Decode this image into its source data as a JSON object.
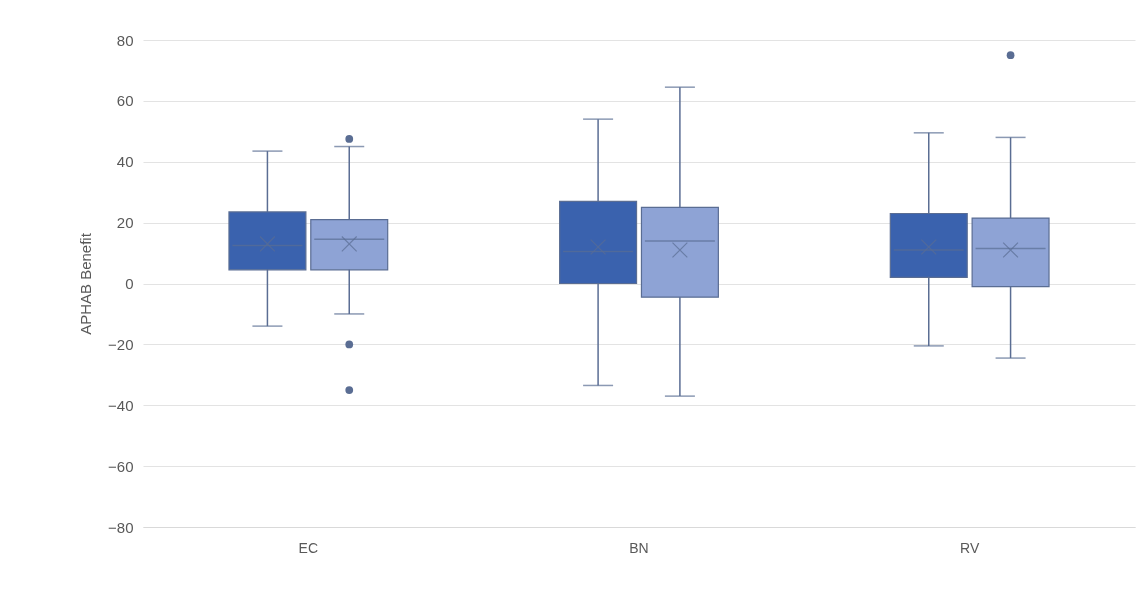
{
  "chart_data": {
    "type": "box",
    "ylabel": "APHAB Benefit",
    "categories": [
      "EC",
      "BN",
      "RV"
    ],
    "series": [
      {
        "color": "#3a62ae",
        "boxes": [
          {
            "low": -14,
            "q1": 4.5,
            "median": 12.5,
            "q3": 23.5,
            "high": 43.5,
            "mean": 13
          },
          {
            "low": -33.5,
            "q1": 0,
            "median": 10.5,
            "q3": 27,
            "high": 54,
            "mean": 12
          },
          {
            "low": -20.5,
            "q1": 2,
            "median": 11,
            "q3": 23,
            "high": 49.5,
            "mean": 12
          }
        ]
      },
      {
        "color": "#8ea3d5",
        "boxes": [
          {
            "low": -10,
            "q1": 4.5,
            "median": 14.5,
            "q3": 21,
            "high": 45,
            "mean": 13,
            "outliers": [
              47.5,
              -20,
              -35
            ]
          },
          {
            "low": -37,
            "q1": -4.5,
            "median": 14,
            "q3": 25,
            "high": 64.5,
            "mean": 11
          },
          {
            "low": -24.5,
            "q1": -1,
            "median": 11.5,
            "q3": 21.5,
            "high": 48,
            "mean": 11,
            "outliers": [
              75
            ]
          }
        ]
      }
    ],
    "ylim": [
      -80,
      80
    ],
    "yticks": [
      -80,
      -60,
      -40,
      -20,
      0,
      20,
      40,
      60,
      80
    ],
    "grid": "y"
  }
}
